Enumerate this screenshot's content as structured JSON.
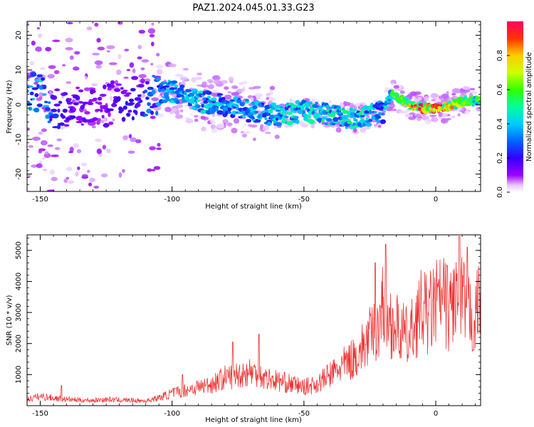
{
  "title": "PAZ1.2024.045.01.33.G23",
  "chart_data": [
    {
      "type": "heatmap",
      "xlabel": "Height of straight line (km)",
      "ylabel": "Frequency (Hz)",
      "xlim": [
        -155,
        17
      ],
      "ylim": [
        -25,
        24
      ],
      "xticks": [
        -150,
        -100,
        -50,
        0
      ],
      "yticks": [
        -20,
        -10,
        0,
        10,
        20
      ],
      "colorbar": {
        "label": "Normalized spectral amplitude",
        "range": [
          0,
          1
        ],
        "ticks": [
          0.0,
          0.2,
          0.4,
          0.6,
          0.8
        ]
      },
      "ridge": {
        "x": [
          -155,
          -150,
          -145,
          -140,
          -130,
          -120,
          -110,
          -100,
          -90,
          -80,
          -70,
          -60,
          -50,
          -40,
          -30,
          -25,
          -20,
          -17,
          -10,
          -5,
          0,
          5,
          10,
          17
        ],
        "frequency": [
          3,
          3.5,
          -2,
          0,
          -1,
          1,
          3,
          4,
          1,
          0,
          -2,
          -3,
          -2,
          -3,
          -4,
          -3,
          -2,
          3,
          0,
          -1,
          -1,
          -0.5,
          1,
          1
        ],
        "peak_amplitude": [
          0.35,
          0.45,
          0.25,
          0.2,
          0.15,
          0.18,
          0.3,
          0.4,
          0.45,
          0.4,
          0.4,
          0.45,
          0.45,
          0.5,
          0.5,
          0.45,
          0.35,
          0.55,
          0.85,
          0.95,
          0.95,
          0.85,
          0.7,
          0.6
        ]
      },
      "grid": false,
      "legend": "colorbar-right"
    },
    {
      "type": "line",
      "xlabel": "Height of straight line (km)",
      "ylabel": "SNR (10 * v/v)",
      "xlim": [
        -155,
        17
      ],
      "ylim": [
        0,
        5500
      ],
      "xticks": [
        -150,
        -100,
        -50,
        0
      ],
      "yticks": [
        1000,
        2000,
        3000,
        4000,
        5000
      ],
      "color": "#ee3333",
      "series": [
        {
          "x": [
            -155,
            -150,
            -145,
            -140,
            -135,
            -130,
            -125,
            -120,
            -115,
            -110,
            -105,
            -100,
            -95,
            -90,
            -85,
            -80,
            -75,
            -70,
            -65,
            -60,
            -55,
            -50,
            -45,
            -40,
            -35,
            -30,
            -25,
            -22,
            -20,
            -18,
            -15,
            -12,
            -10,
            -8,
            -5,
            -3,
            0,
            3,
            5,
            8,
            9,
            10,
            12,
            15,
            17
          ],
          "values": [
            200,
            300,
            250,
            200,
            180,
            170,
            200,
            180,
            170,
            150,
            250,
            400,
            500,
            600,
            700,
            900,
            1000,
            1100,
            900,
            800,
            700,
            600,
            700,
            1000,
            1300,
            1600,
            2200,
            2600,
            3300,
            2800,
            2500,
            2300,
            2100,
            2700,
            3100,
            2900,
            3300,
            3400,
            3100,
            3600,
            2700,
            3400,
            3100,
            2700,
            3900
          ],
          "peaks": [
            {
              "x": -142,
              "value": 650
            },
            {
              "x": -96,
              "value": 1000
            },
            {
              "x": -77,
              "value": 2050
            },
            {
              "x": -67,
              "value": 2300
            },
            {
              "x": -23,
              "value": 4600
            },
            {
              "x": -19,
              "value": 5200
            },
            {
              "x": 9,
              "value": 5450
            },
            {
              "x": 12,
              "value": 5100
            }
          ]
        }
      ],
      "grid": false
    }
  ]
}
